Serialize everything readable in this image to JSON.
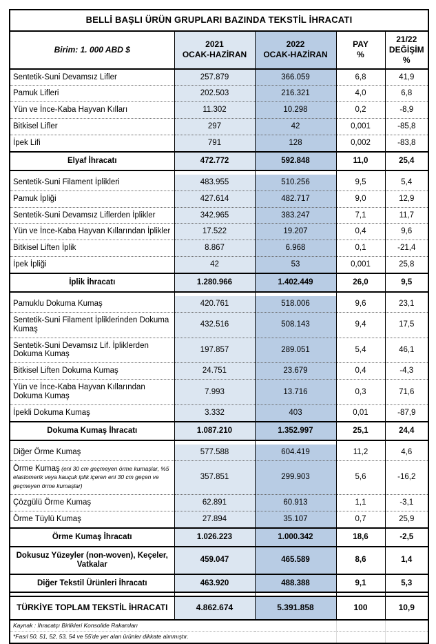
{
  "title": "BELLİ BAŞLI ÜRÜN GRUPLARI BAZINDA TEKSTİL İHRACATI",
  "colors": {
    "col_2021_bg": "#dce6f1",
    "col_2022_bg": "#b8cce4",
    "border": "#000000"
  },
  "header": {
    "unit_note": "Birim: 1. 000 ABD $",
    "col_2021": "2021\nOCAK-HAZİRAN",
    "col_2022": "2022\nOCAK-HAZİRAN",
    "col_pay": "PAY\n%",
    "col_change": "21/22\nDEĞİŞİM\n%"
  },
  "table": {
    "rows": [
      {
        "type": "item",
        "label": "Sentetik-Suni Devamsız Lifler",
        "v2021": "257.879",
        "v2022": "366.059",
        "pay": "6,8",
        "chg": "41,9"
      },
      {
        "type": "item",
        "label": "Pamuk Lifleri",
        "v2021": "202.503",
        "v2022": "216.321",
        "pay": "4,0",
        "chg": "6,8"
      },
      {
        "type": "item",
        "label": "Yün ve İnce-Kaba Hayvan Kılları",
        "v2021": "11.302",
        "v2022": "10.298",
        "pay": "0,2",
        "chg": "-8,9"
      },
      {
        "type": "item",
        "label": "Bitkisel Lifler",
        "v2021": "297",
        "v2022": "42",
        "pay": "0,001",
        "chg": "-85,8"
      },
      {
        "type": "item",
        "label": "İpek Lifi",
        "v2021": "791",
        "v2022": "128",
        "pay": "0,002",
        "chg": "-83,8"
      },
      {
        "type": "total",
        "label": "Elyaf İhracatı",
        "v2021": "472.772",
        "v2022": "592.848",
        "pay": "11,0",
        "chg": "25,4"
      },
      {
        "type": "spacer"
      },
      {
        "type": "item",
        "label": "Sentetik-Suni Filament İplikleri",
        "v2021": "483.955",
        "v2022": "510.256",
        "pay": "9,5",
        "chg": "5,4"
      },
      {
        "type": "item",
        "label": "Pamuk İpliği",
        "v2021": "427.614",
        "v2022": "482.717",
        "pay": "9,0",
        "chg": "12,9"
      },
      {
        "type": "item",
        "label": "Sentetik-Suni Devamsız Liflerden İplikler",
        "v2021": "342.965",
        "v2022": "383.247",
        "pay": "7,1",
        "chg": "11,7"
      },
      {
        "type": "item",
        "label": "Yün ve İnce-Kaba Hayvan Kıllarından İplikler",
        "v2021": "17.522",
        "v2022": "19.207",
        "pay": "0,4",
        "chg": "9,6"
      },
      {
        "type": "item",
        "label": "Bitkisel Liften İplik",
        "v2021": "8.867",
        "v2022": "6.968",
        "pay": "0,1",
        "chg": "-21,4"
      },
      {
        "type": "item",
        "label": "İpek İpliği",
        "v2021": "42",
        "v2022": "53",
        "pay": "0,001",
        "chg": "25,8"
      },
      {
        "type": "total",
        "label": "İplik İhracatı",
        "v2021": "1.280.966",
        "v2022": "1.402.449",
        "pay": "26,0",
        "chg": "9,5"
      },
      {
        "type": "spacer"
      },
      {
        "type": "item",
        "label": "Pamuklu Dokuma Kumaş",
        "v2021": "420.761",
        "v2022": "518.006",
        "pay": "9,6",
        "chg": "23,1"
      },
      {
        "type": "item",
        "label": "Sentetik-Suni Filament İpliklerinden Dokuma Kumaş",
        "v2021": "432.516",
        "v2022": "508.143",
        "pay": "9,4",
        "chg": "17,5"
      },
      {
        "type": "item",
        "label": "Sentetik-Suni Devamsız Lif. İpliklerden Dokuma Kumaş",
        "v2021": "197.857",
        "v2022": "289.051",
        "pay": "5,4",
        "chg": "46,1"
      },
      {
        "type": "item",
        "label": "Bitkisel Liften Dokuma Kumaş",
        "v2021": "24.751",
        "v2022": "23.679",
        "pay": "0,4",
        "chg": "-4,3"
      },
      {
        "type": "item",
        "label": "Yün ve İnce-Kaba Hayvan Kıllarından Dokuma Kumaş",
        "v2021": "7.993",
        "v2022": "13.716",
        "pay": "0,3",
        "chg": "71,6"
      },
      {
        "type": "item",
        "label": "İpekli Dokuma Kumaş",
        "v2021": "3.332",
        "v2022": "403",
        "pay": "0,01",
        "chg": "-87,9"
      },
      {
        "type": "total",
        "label": "Dokuma Kumaş İhracatı",
        "v2021": "1.087.210",
        "v2022": "1.352.997",
        "pay": "25,1",
        "chg": "24,4"
      },
      {
        "type": "spacer"
      },
      {
        "type": "item",
        "label": "Diğer Örme Kumaş",
        "v2021": "577.588",
        "v2022": "604.419",
        "pay": "11,2",
        "chg": "4,6"
      },
      {
        "type": "item",
        "label": "Örme Kumaş",
        "note": "(eni 30 cm geçmeyen örme kumaşlar, %5 elastomerik veya kauçuk iplik içeren eni 30 cm geçen ve geçmeyen örme kumaşlar)",
        "v2021": "357.851",
        "v2022": "299.903",
        "pay": "5,6",
        "chg": "-16,2"
      },
      {
        "type": "item",
        "label": "Çözgülü Örme Kumaş",
        "v2021": "62.891",
        "v2022": "60.913",
        "pay": "1,1",
        "chg": "-3,1"
      },
      {
        "type": "item",
        "label": "Örme Tüylü Kumaş",
        "v2021": "27.894",
        "v2022": "35.107",
        "pay": "0,7",
        "chg": "25,9"
      },
      {
        "type": "total",
        "label": "Örme Kumaş İhracatı",
        "v2021": "1.026.223",
        "v2022": "1.000.342",
        "pay": "18,6",
        "chg": "-2,5"
      },
      {
        "type": "total",
        "label": "Dokusuz Yüzeyler (non-woven), Keçeler, Vatkalar",
        "v2021": "459.047",
        "v2022": "465.589",
        "pay": "8,6",
        "chg": "1,4"
      },
      {
        "type": "total",
        "label": "Diğer Tekstil Ürünleri İhracatı",
        "v2021": "463.920",
        "v2022": "488.388",
        "pay": "9,1",
        "chg": "5,3"
      },
      {
        "type": "spacer"
      },
      {
        "type": "grand",
        "label": "TÜRKİYE TOPLAM TEKSTİL İHRACATI",
        "v2021": "4.862.674",
        "v2022": "5.391.858",
        "pay": "100",
        "chg": "10,9"
      }
    ]
  },
  "footnotes": {
    "source": "Kaynak : İhracatçı Birlikleri Konsolide Rakamları",
    "scope": "*Fasıl 50, 51, 52, 53, 54 ve 55'de yer alan ürünler dikkate alınmıştır."
  }
}
